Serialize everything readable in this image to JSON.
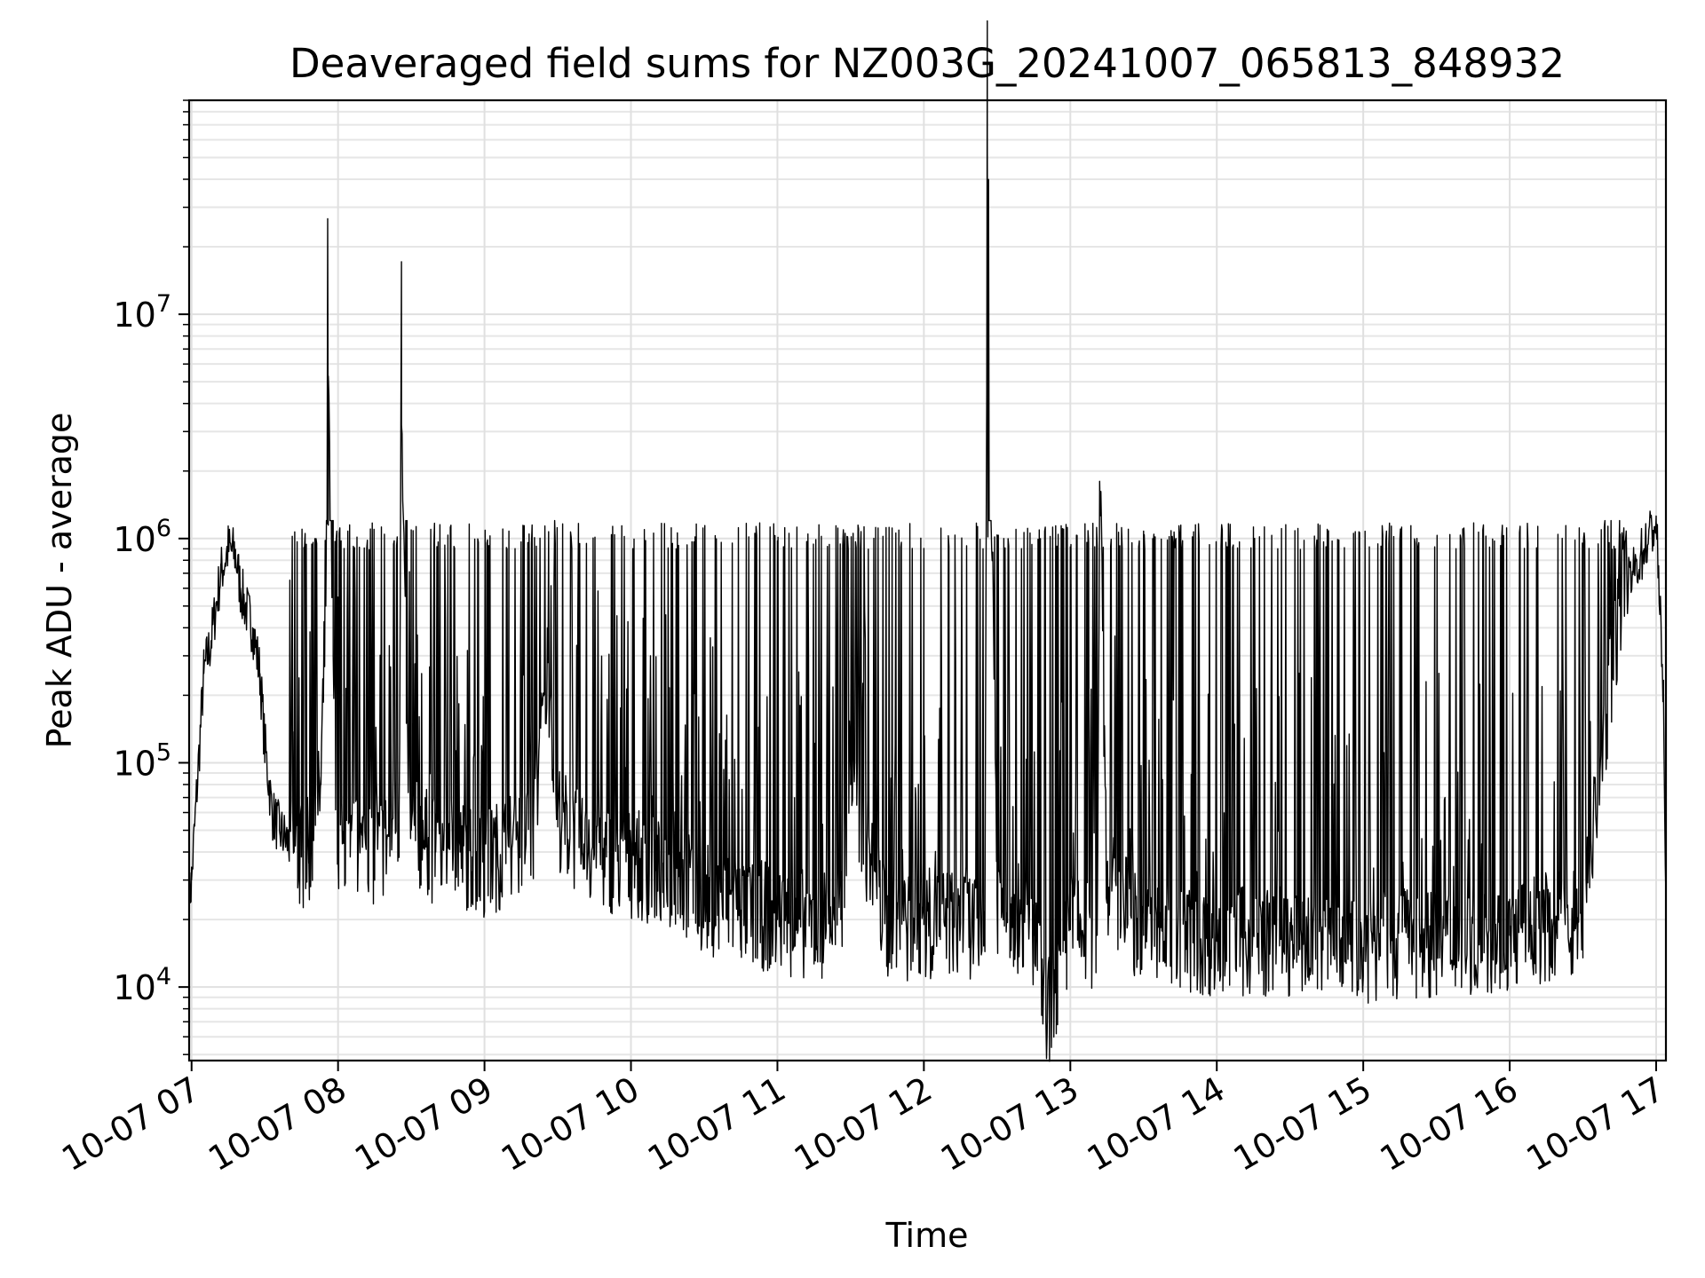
{
  "chart_data": {
    "type": "line",
    "title": "Deaveraged field sums for NZ003G_20241007_065813_848932",
    "xlabel": "Time",
    "ylabel": "Peak ADU - average",
    "yscale": "log",
    "xlim": [
      "2024-10-07 06:59",
      "2024-10-07 17:04"
    ],
    "ylim": [
      4700,
      90000000
    ],
    "grid": true,
    "x_tick_labels": [
      "10-07 07",
      "10-07 08",
      "10-07 09",
      "10-07 10",
      "10-07 11",
      "10-07 12",
      "10-07 13",
      "10-07 14",
      "10-07 15",
      "10-07 16",
      "10-07 17"
    ],
    "y_tick_labels": [
      {
        "value": 10000,
        "base": "10",
        "exp": "4"
      },
      {
        "value": 100000,
        "base": "10",
        "exp": "5"
      },
      {
        "value": 1000000,
        "base": "10",
        "exp": "6"
      },
      {
        "value": 10000000,
        "base": "10",
        "exp": "7"
      }
    ],
    "line_color": "#000000",
    "series": [
      {
        "x": [
          "06:59",
          "07:00",
          "07:02",
          "07:05",
          "07:08",
          "07:10",
          "07:12",
          "07:15",
          "07:18",
          "07:20",
          "07:22",
          "07:25",
          "07:28",
          "07:30",
          "07:33",
          "07:36",
          "07:39",
          "07:42",
          "07:45",
          "07:48",
          "07:50",
          "07:53",
          "07:55",
          "07:56",
          "07:58",
          "08:00",
          "08:05",
          "08:10",
          "08:15",
          "08:20",
          "08:25",
          "08:26",
          "08:28",
          "08:30",
          "08:35",
          "08:40",
          "08:45",
          "08:50",
          "08:55",
          "09:00",
          "09:10",
          "09:20",
          "09:26",
          "09:30",
          "09:40",
          "09:50",
          "10:00",
          "10:10",
          "10:20",
          "10:30",
          "10:45",
          "11:00",
          "11:15",
          "11:26",
          "11:30",
          "11:45",
          "12:00",
          "12:15",
          "12:25",
          "12:26",
          "12:30",
          "12:45",
          "12:50",
          "13:00",
          "13:11",
          "13:12",
          "13:15",
          "13:30",
          "14:00",
          "14:30",
          "15:00",
          "15:30",
          "16:00",
          "16:30",
          "16:45",
          "16:55",
          "17:00",
          "17:03",
          "17:04"
        ],
        "y": [
          24000,
          30000,
          70000,
          250000,
          350000,
          500000,
          700000,
          900000,
          850000,
          600000,
          500000,
          400000,
          250000,
          120000,
          60000,
          50000,
          45000,
          40000,
          38000,
          40000,
          45000,
          80000,
          500000,
          5300000,
          300000,
          40000,
          38000,
          42000,
          40000,
          45000,
          60000,
          3200000,
          150000,
          50000,
          45000,
          40000,
          45000,
          40000,
          38000,
          35000,
          42000,
          50000,
          280000,
          60000,
          40000,
          38000,
          35000,
          33000,
          30000,
          25000,
          22000,
          20000,
          19000,
          20000,
          80000,
          18000,
          19000,
          20000,
          18000,
          60000000,
          25000,
          17000,
          7000,
          18000,
          17000,
          1800000,
          30000,
          17000,
          16000,
          16000,
          15000,
          16000,
          17000,
          20000,
          500000,
          900000,
          1200000,
          200000,
          22000
        ]
      }
    ]
  }
}
